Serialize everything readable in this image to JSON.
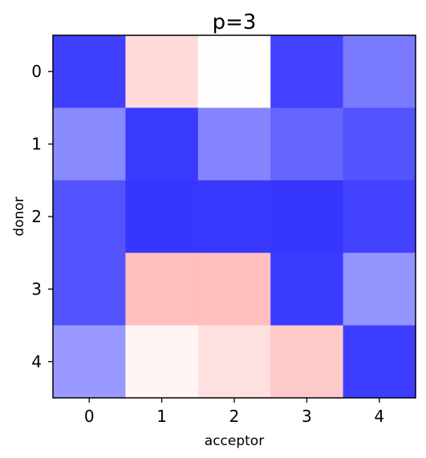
{
  "chart_data": {
    "type": "heatmap",
    "title": "p=3",
    "xlabel": "acceptor",
    "ylabel": "donor",
    "x_ticks": [
      "0",
      "1",
      "2",
      "3",
      "4"
    ],
    "y_ticks": [
      "0",
      "1",
      "2",
      "3",
      "4"
    ],
    "values": [
      [
        -0.75,
        0.14,
        0.01,
        -0.74,
        -0.52
      ],
      [
        -0.46,
        -0.77,
        -0.48,
        -0.6,
        -0.67
      ],
      [
        -0.67,
        -0.79,
        -0.78,
        -0.79,
        -0.74
      ],
      [
        -0.67,
        0.25,
        0.25,
        -0.77,
        -0.42
      ],
      [
        -0.4,
        0.04,
        0.12,
        0.21,
        -0.76
      ]
    ],
    "color_scale": {
      "type": "diverging",
      "negative_color": "#0000ff",
      "center_color": "#ffffff",
      "positive_color": "#ff0000",
      "vmin": -1,
      "vmax": 1
    },
    "grid": false,
    "legend": "none"
  }
}
